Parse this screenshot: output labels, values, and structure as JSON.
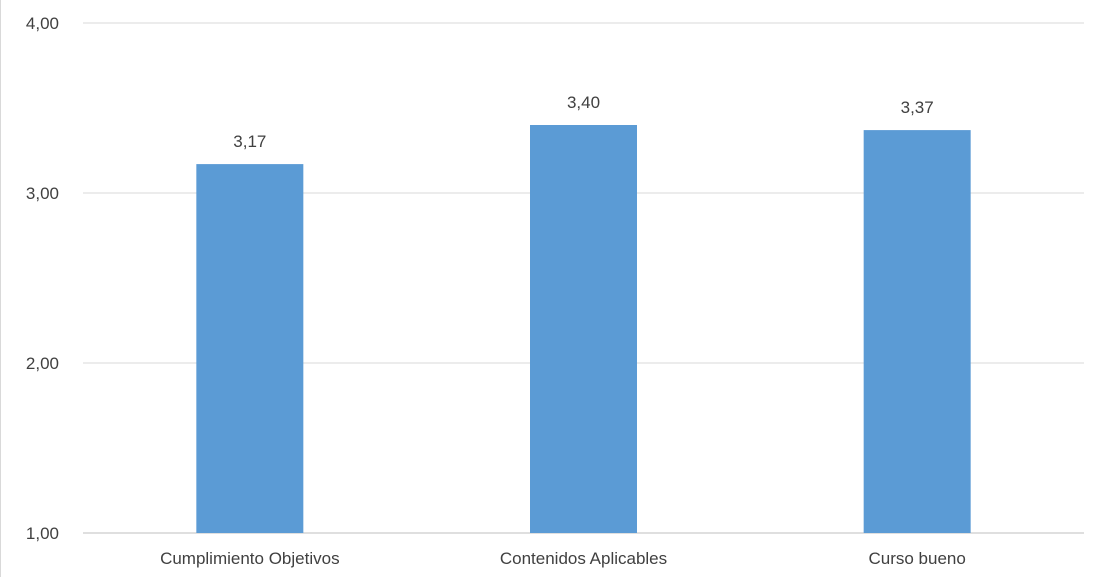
{
  "chart_data": {
    "type": "bar",
    "categories": [
      "Cumplimiento Objetivos",
      "Contenidos Aplicables",
      "Curso bueno"
    ],
    "values": [
      3.17,
      3.4,
      3.37
    ],
    "data_labels": [
      "3,17",
      "3,40",
      "3,37"
    ],
    "title": "",
    "xlabel": "",
    "ylabel": "",
    "ylim": [
      1.0,
      4.0
    ],
    "yticks": [
      1.0,
      2.0,
      3.0,
      4.0
    ],
    "ytick_labels": [
      "1,00",
      "2,00",
      "3,00",
      "4,00"
    ],
    "grid": true,
    "legend": "none",
    "colors": {
      "bar": "#5b9bd5",
      "grid": "#d9d9d9",
      "axis": "#bfbfbf",
      "text": "#404040"
    }
  }
}
